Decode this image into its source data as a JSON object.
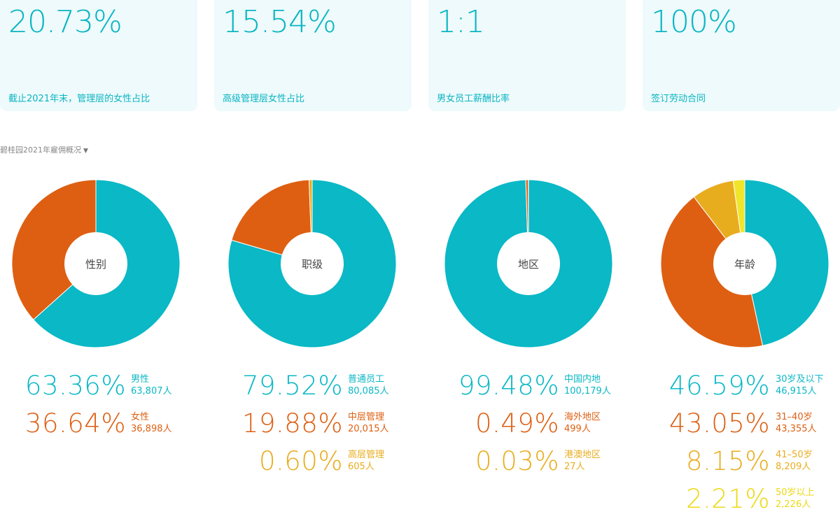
{
  "cards": [
    {
      "value": "20.73%",
      "label": "截止2021年末，管理层的女性占比"
    },
    {
      "value": "15.54%",
      "label": "高级管理层女性占比"
    },
    {
      "value": "1:1",
      "label": "男女员工薪酬比率"
    },
    {
      "value": "100%",
      "label": "签订劳动合同"
    }
  ],
  "section": {
    "title": "碧桂园2021年雇佣概况",
    "arrow": "▼"
  },
  "colors": {
    "teal": "#0ab8c6",
    "orange": "#de5f12",
    "amber": "#e8ad1e",
    "yellow": "#f1e52b"
  },
  "chart_data": [
    {
      "type": "pie",
      "title": "性别",
      "categories": [
        "男性",
        "女性"
      ],
      "values": [
        63.36,
        36.64
      ],
      "counts": [
        "63,807人",
        "36,898人"
      ],
      "percent_labels": [
        "63.36%",
        "36.64%"
      ],
      "colors": [
        "#0ab8c6",
        "#de5f12"
      ]
    },
    {
      "type": "pie",
      "title": "职级",
      "categories": [
        "普通员工",
        "中层管理",
        "高层管理"
      ],
      "values": [
        79.52,
        19.88,
        0.6
      ],
      "counts": [
        "80,085人",
        "20,015人",
        "605人"
      ],
      "percent_labels": [
        "79.52%",
        "19.88%",
        "0.60%"
      ],
      "colors": [
        "#0ab8c6",
        "#de5f12",
        "#e8ad1e"
      ]
    },
    {
      "type": "pie",
      "title": "地区",
      "categories": [
        "中国内地",
        "海外地区",
        "港澳地区"
      ],
      "values": [
        99.48,
        0.49,
        0.03
      ],
      "counts": [
        "100,179人",
        "499人",
        "27人"
      ],
      "percent_labels": [
        "99.48%",
        "0.49%",
        "0.03%"
      ],
      "colors": [
        "#0ab8c6",
        "#de5f12",
        "#e8ad1e"
      ]
    },
    {
      "type": "pie",
      "title": "年龄",
      "categories": [
        "30岁及以下",
        "31–40岁",
        "41–50岁",
        "50岁以上"
      ],
      "values": [
        46.59,
        43.05,
        8.15,
        2.21
      ],
      "counts": [
        "46,915人",
        "43,355人",
        "8,209人",
        "2,226人"
      ],
      "percent_labels": [
        "46.59%",
        "43.05%",
        "8.15%",
        "2.21%"
      ],
      "colors": [
        "#0ab8c6",
        "#de5f12",
        "#e8ad1e",
        "#f1e52b"
      ]
    }
  ]
}
